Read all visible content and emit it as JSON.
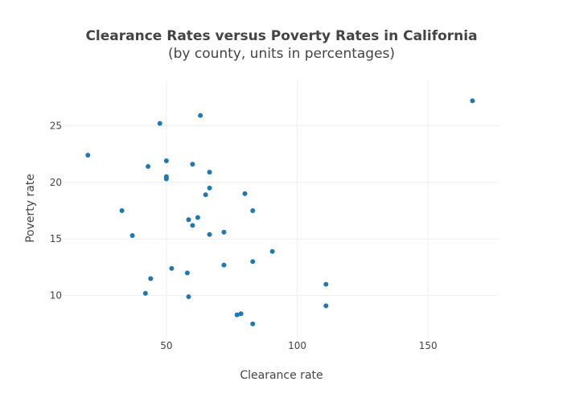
{
  "chart_data": {
    "type": "scatter",
    "title": "Clearance Rates versus Poverty Rates in California",
    "subtitle": "(by county, units in percentages)",
    "xlabel": "Clearance rate",
    "ylabel": "Poverty rate",
    "xlim": [
      11,
      177
    ],
    "ylim": [
      6,
      29
    ],
    "x_ticks": [
      50,
      100,
      150
    ],
    "y_ticks": [
      10,
      15,
      20,
      25
    ],
    "grid": true,
    "marker_color": "#1f77b4",
    "points": [
      {
        "x": 20,
        "y": 22.4
      },
      {
        "x": 33,
        "y": 17.5
      },
      {
        "x": 37,
        "y": 15.3
      },
      {
        "x": 42,
        "y": 10.2
      },
      {
        "x": 43,
        "y": 21.4
      },
      {
        "x": 44,
        "y": 11.5
      },
      {
        "x": 47.5,
        "y": 25.2
      },
      {
        "x": 50,
        "y": 21.9
      },
      {
        "x": 50,
        "y": 20.5
      },
      {
        "x": 50,
        "y": 20.3
      },
      {
        "x": 52,
        "y": 12.4
      },
      {
        "x": 58,
        "y": 12.0
      },
      {
        "x": 58.5,
        "y": 16.7
      },
      {
        "x": 58.5,
        "y": 9.9
      },
      {
        "x": 60,
        "y": 21.6
      },
      {
        "x": 60,
        "y": 16.2
      },
      {
        "x": 62,
        "y": 16.9
      },
      {
        "x": 63,
        "y": 25.9
      },
      {
        "x": 65,
        "y": 18.9
      },
      {
        "x": 66.5,
        "y": 20.9
      },
      {
        "x": 66.5,
        "y": 19.5
      },
      {
        "x": 66.5,
        "y": 15.4
      },
      {
        "x": 72,
        "y": 15.6
      },
      {
        "x": 72,
        "y": 12.7
      },
      {
        "x": 77,
        "y": 8.3
      },
      {
        "x": 78.5,
        "y": 8.4
      },
      {
        "x": 80,
        "y": 19.0
      },
      {
        "x": 83,
        "y": 17.5
      },
      {
        "x": 83,
        "y": 13.0
      },
      {
        "x": 83,
        "y": 7.5
      },
      {
        "x": 90.5,
        "y": 13.9
      },
      {
        "x": 111,
        "y": 11.0
      },
      {
        "x": 111,
        "y": 9.1
      },
      {
        "x": 167,
        "y": 27.2
      }
    ]
  }
}
